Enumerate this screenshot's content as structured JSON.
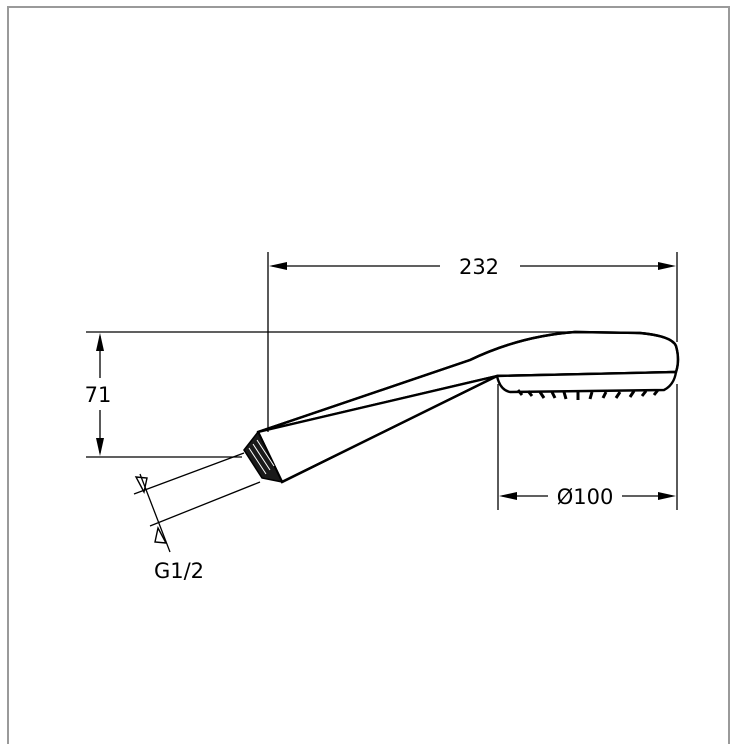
{
  "drawing": {
    "dimension_length": "232",
    "dimension_height": "71",
    "dimension_head_diameter": "Ø100",
    "dimension_thread": "G1/2"
  }
}
